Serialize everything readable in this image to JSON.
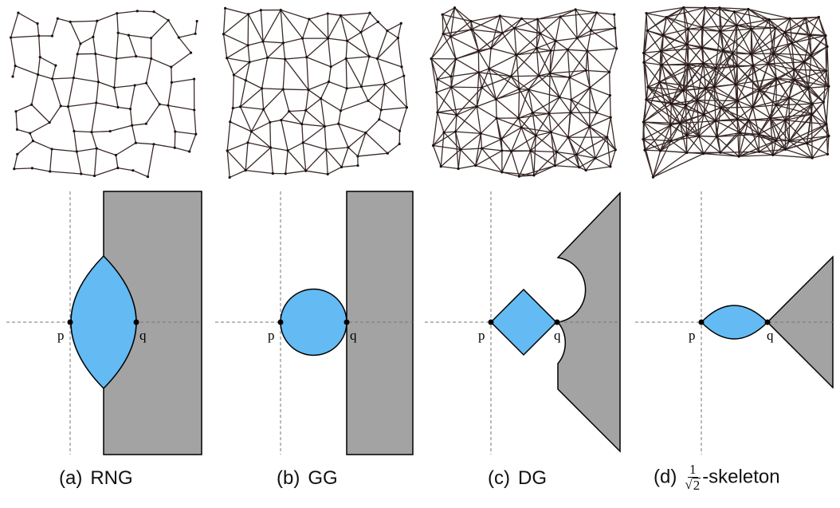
{
  "panels": [
    {
      "id": "a",
      "caption_letter": "(a)",
      "caption_text": "RNG",
      "p_label": "p",
      "q_label": "q"
    },
    {
      "id": "b",
      "caption_letter": "(b)",
      "caption_text": "GG",
      "p_label": "p",
      "q_label": "q"
    },
    {
      "id": "c",
      "caption_letter": "(c)",
      "caption_text": "DG",
      "p_label": "p",
      "q_label": "q"
    },
    {
      "id": "d",
      "caption_letter": "(d)",
      "caption_num": "1",
      "caption_rad": "2",
      "caption_text": "-skeleton",
      "p_label": "p",
      "q_label": "q"
    }
  ],
  "colors": {
    "region": "#64baf2",
    "forbidden": "#a3a3a3",
    "edge": "#3a2a28",
    "axis": "#777777"
  }
}
